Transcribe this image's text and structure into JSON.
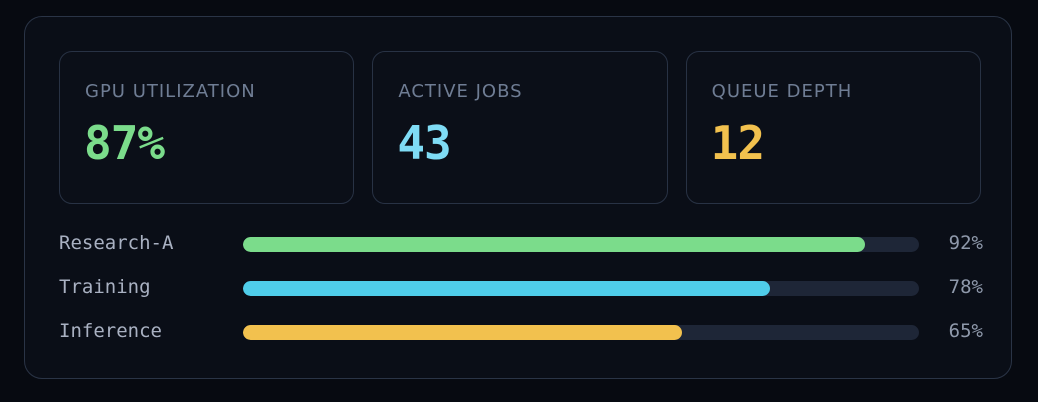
{
  "stats": [
    {
      "label": "GPU UTILIZATION",
      "value": "87%",
      "color": "#7bdc8b"
    },
    {
      "label": "ACTIVE JOBS",
      "value": "43",
      "color": "#7fdcf5"
    },
    {
      "label": "QUEUE DEPTH",
      "value": "12",
      "color": "#f2c14e"
    }
  ],
  "bars": [
    {
      "label": "Research-A",
      "percent_text": "92%",
      "fraction": 0.92,
      "color": "#7bdc8b"
    },
    {
      "label": "Training",
      "percent_text": "78%",
      "fraction": 0.78,
      "color": "#4fcdea"
    },
    {
      "label": "Inference",
      "percent_text": "65%",
      "fraction": 0.65,
      "color": "#f2c14e"
    }
  ]
}
